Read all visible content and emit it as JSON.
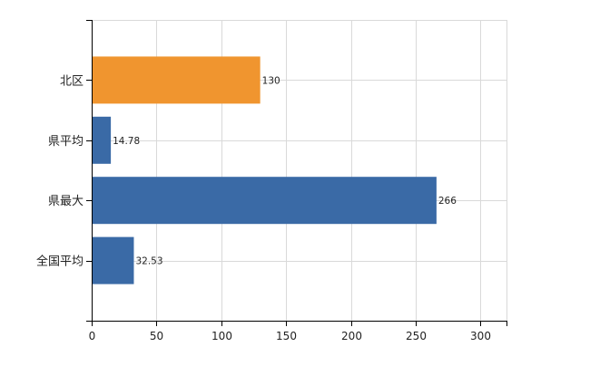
{
  "chart_data": {
    "type": "bar",
    "orientation": "horizontal",
    "categories": [
      "北区",
      "県平均",
      "県最大",
      "全国平均"
    ],
    "values": [
      130,
      14.78,
      266,
      32.53
    ],
    "value_labels": [
      "130",
      "14.78",
      "266",
      "32.53"
    ],
    "bar_colors": [
      "#f0952f",
      "#3a6aa6",
      "#3a6aa6",
      "#3a6aa6"
    ],
    "xlim": [
      0,
      320
    ],
    "xticks": [
      0,
      50,
      100,
      150,
      200,
      250,
      300
    ],
    "grid": true,
    "title": "",
    "xlabel": "",
    "ylabel": ""
  }
}
